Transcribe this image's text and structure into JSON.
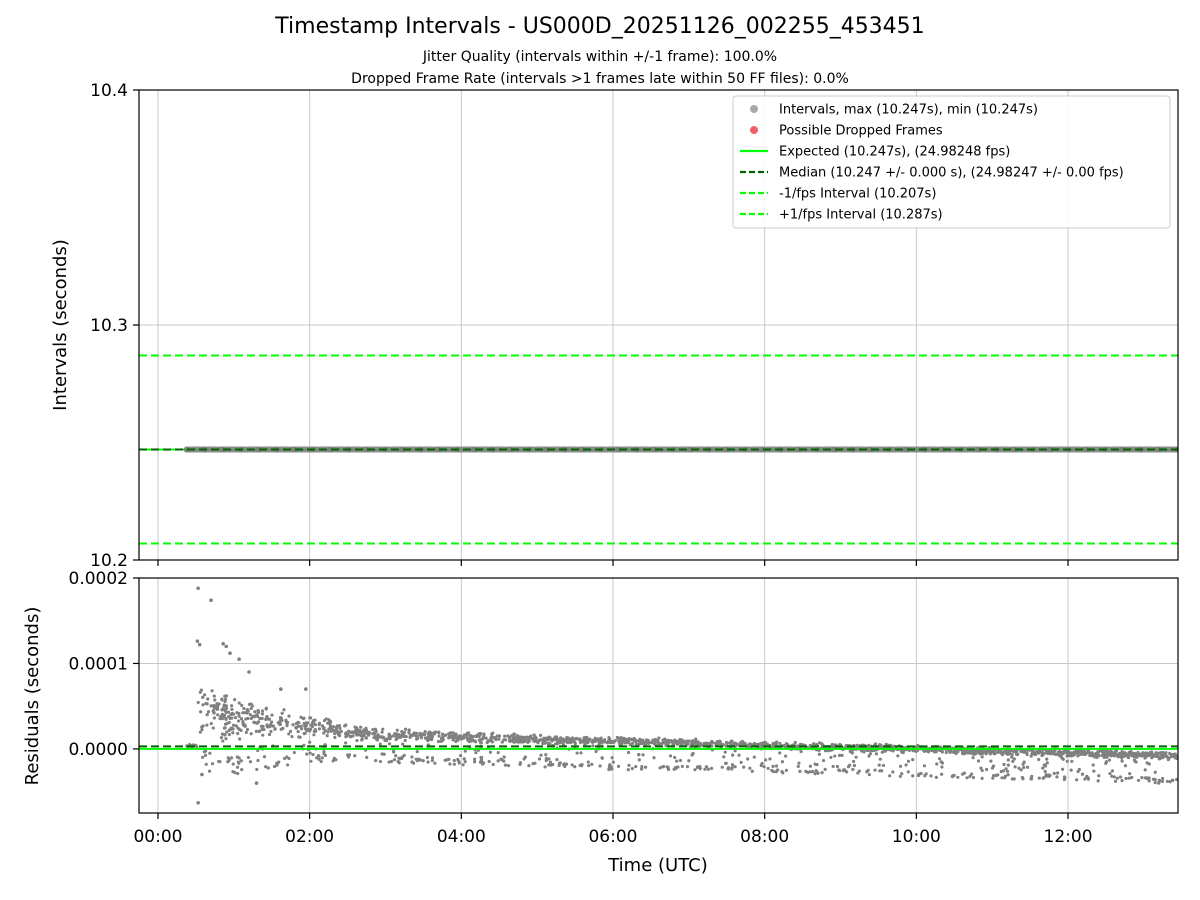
{
  "chart_data": {
    "type": "scatter",
    "title": "Timestamp Intervals - US000D_20251126_002255_453451",
    "subtitle_lines": [
      "Jitter Quality (intervals within +/-1 frame): 100.0%",
      "Dropped Frame Rate (intervals >1 frames late within 50 FF files): 0.0%"
    ],
    "x": {
      "label": "Time (UTC)",
      "range_hours": [
        -0.25,
        13.45
      ],
      "ticks": [
        {
          "value": 0,
          "label": "00:00"
        },
        {
          "value": 2,
          "label": "02:00"
        },
        {
          "value": 4,
          "label": "04:00"
        },
        {
          "value": 6,
          "label": "06:00"
        },
        {
          "value": 8,
          "label": "08:00"
        },
        {
          "value": 10,
          "label": "10:00"
        },
        {
          "value": 12,
          "label": "12:00"
        }
      ],
      "data_start_hours": 0.38,
      "data_end_hours": 13.45
    },
    "top_panel": {
      "ylabel": "Intervals (seconds)",
      "ylim": [
        10.2,
        10.4
      ],
      "yticks": [
        {
          "value": 10.2,
          "label": "10.2"
        },
        {
          "value": 10.3,
          "label": "10.3"
        },
        {
          "value": 10.4,
          "label": "10.4"
        }
      ],
      "interval_value": 10.247,
      "expected": 10.247,
      "median": 10.247,
      "minus_fps": 10.207,
      "plus_fps": 10.287
    },
    "bottom_panel": {
      "ylabel": "Residuals (seconds)",
      "ylim": [
        -7.5e-05,
        0.0002
      ],
      "yticks": [
        {
          "value": 0.0,
          "label": "0.0000"
        },
        {
          "value": 0.0001,
          "label": "0.0001"
        },
        {
          "value": 0.0002,
          "label": "0.0002"
        }
      ],
      "median_residual": 3e-06,
      "upper_band": [
        [
          0.55,
          5.5e-05
        ],
        [
          1.0,
          4.5e-05
        ],
        [
          2.0,
          3e-05
        ],
        [
          3.0,
          2e-05
        ],
        [
          4.0,
          1.7e-05
        ],
        [
          5.0,
          1.4e-05
        ],
        [
          6.0,
          1.2e-05
        ],
        [
          7.0,
          1e-05
        ],
        [
          8.0,
          7e-06
        ],
        [
          9.0,
          5e-06
        ],
        [
          10.0,
          3e-06
        ],
        [
          11.0,
          0.0
        ],
        [
          12.0,
          -2e-06
        ],
        [
          13.4,
          -5e-06
        ]
      ],
      "lower_cluster": [
        [
          0.55,
          -1.5e-05
        ],
        [
          1.0,
          -2e-05
        ],
        [
          2.0,
          -1e-05
        ],
        [
          3.0,
          -1.2e-05
        ],
        [
          4.0,
          -1.5e-05
        ],
        [
          5.0,
          -1.8e-05
        ],
        [
          6.0,
          -2.2e-05
        ],
        [
          7.0,
          -2.2e-05
        ],
        [
          8.0,
          -2.5e-05
        ],
        [
          9.0,
          -2.7e-05
        ],
        [
          10.0,
          -3e-05
        ],
        [
          11.0,
          -3.2e-05
        ],
        [
          12.0,
          -3.3e-05
        ],
        [
          13.4,
          -3.8e-05
        ]
      ],
      "notable_points": [
        [
          0.53,
          0.000188
        ],
        [
          0.7,
          0.000174
        ],
        [
          0.52,
          0.000126
        ],
        [
          0.55,
          0.000122
        ],
        [
          0.86,
          0.000123
        ],
        [
          0.9,
          0.00012
        ],
        [
          0.95,
          0.000112
        ],
        [
          1.07,
          0.000105
        ],
        [
          0.53,
          -6.3e-05
        ],
        [
          0.58,
          -3e-05
        ],
        [
          1.3,
          -4e-05
        ],
        [
          1.2,
          9e-05
        ],
        [
          1.95,
          7e-05
        ],
        [
          1.62,
          7e-05
        ]
      ]
    },
    "legend": {
      "position": "top-right",
      "entries": [
        {
          "kind": "marker",
          "color": "#a9a9a9",
          "label": "Intervals, max (10.247s), min (10.247s)"
        },
        {
          "kind": "marker",
          "color": "#f0606a",
          "label": "Possible Dropped Frames"
        },
        {
          "kind": "solid",
          "color": "#00ff00",
          "label": "Expected (10.247s), (24.98248 fps)"
        },
        {
          "kind": "dashed",
          "color": "#006400",
          "label": "Median (10.247 +/- 0.000 s), (24.98247 +/- 0.00 fps)"
        },
        {
          "kind": "dashed",
          "color": "#00ff00",
          "label": "-1/fps Interval (10.207s)"
        },
        {
          "kind": "dashed",
          "color": "#00ff00",
          "label": "+1/fps Interval (10.287s)"
        }
      ]
    },
    "colors": {
      "points": "#808080",
      "grid": "#c8c8c8",
      "expected": "#00ff00",
      "median": "#006400",
      "fps_band": "#00ff00"
    }
  }
}
